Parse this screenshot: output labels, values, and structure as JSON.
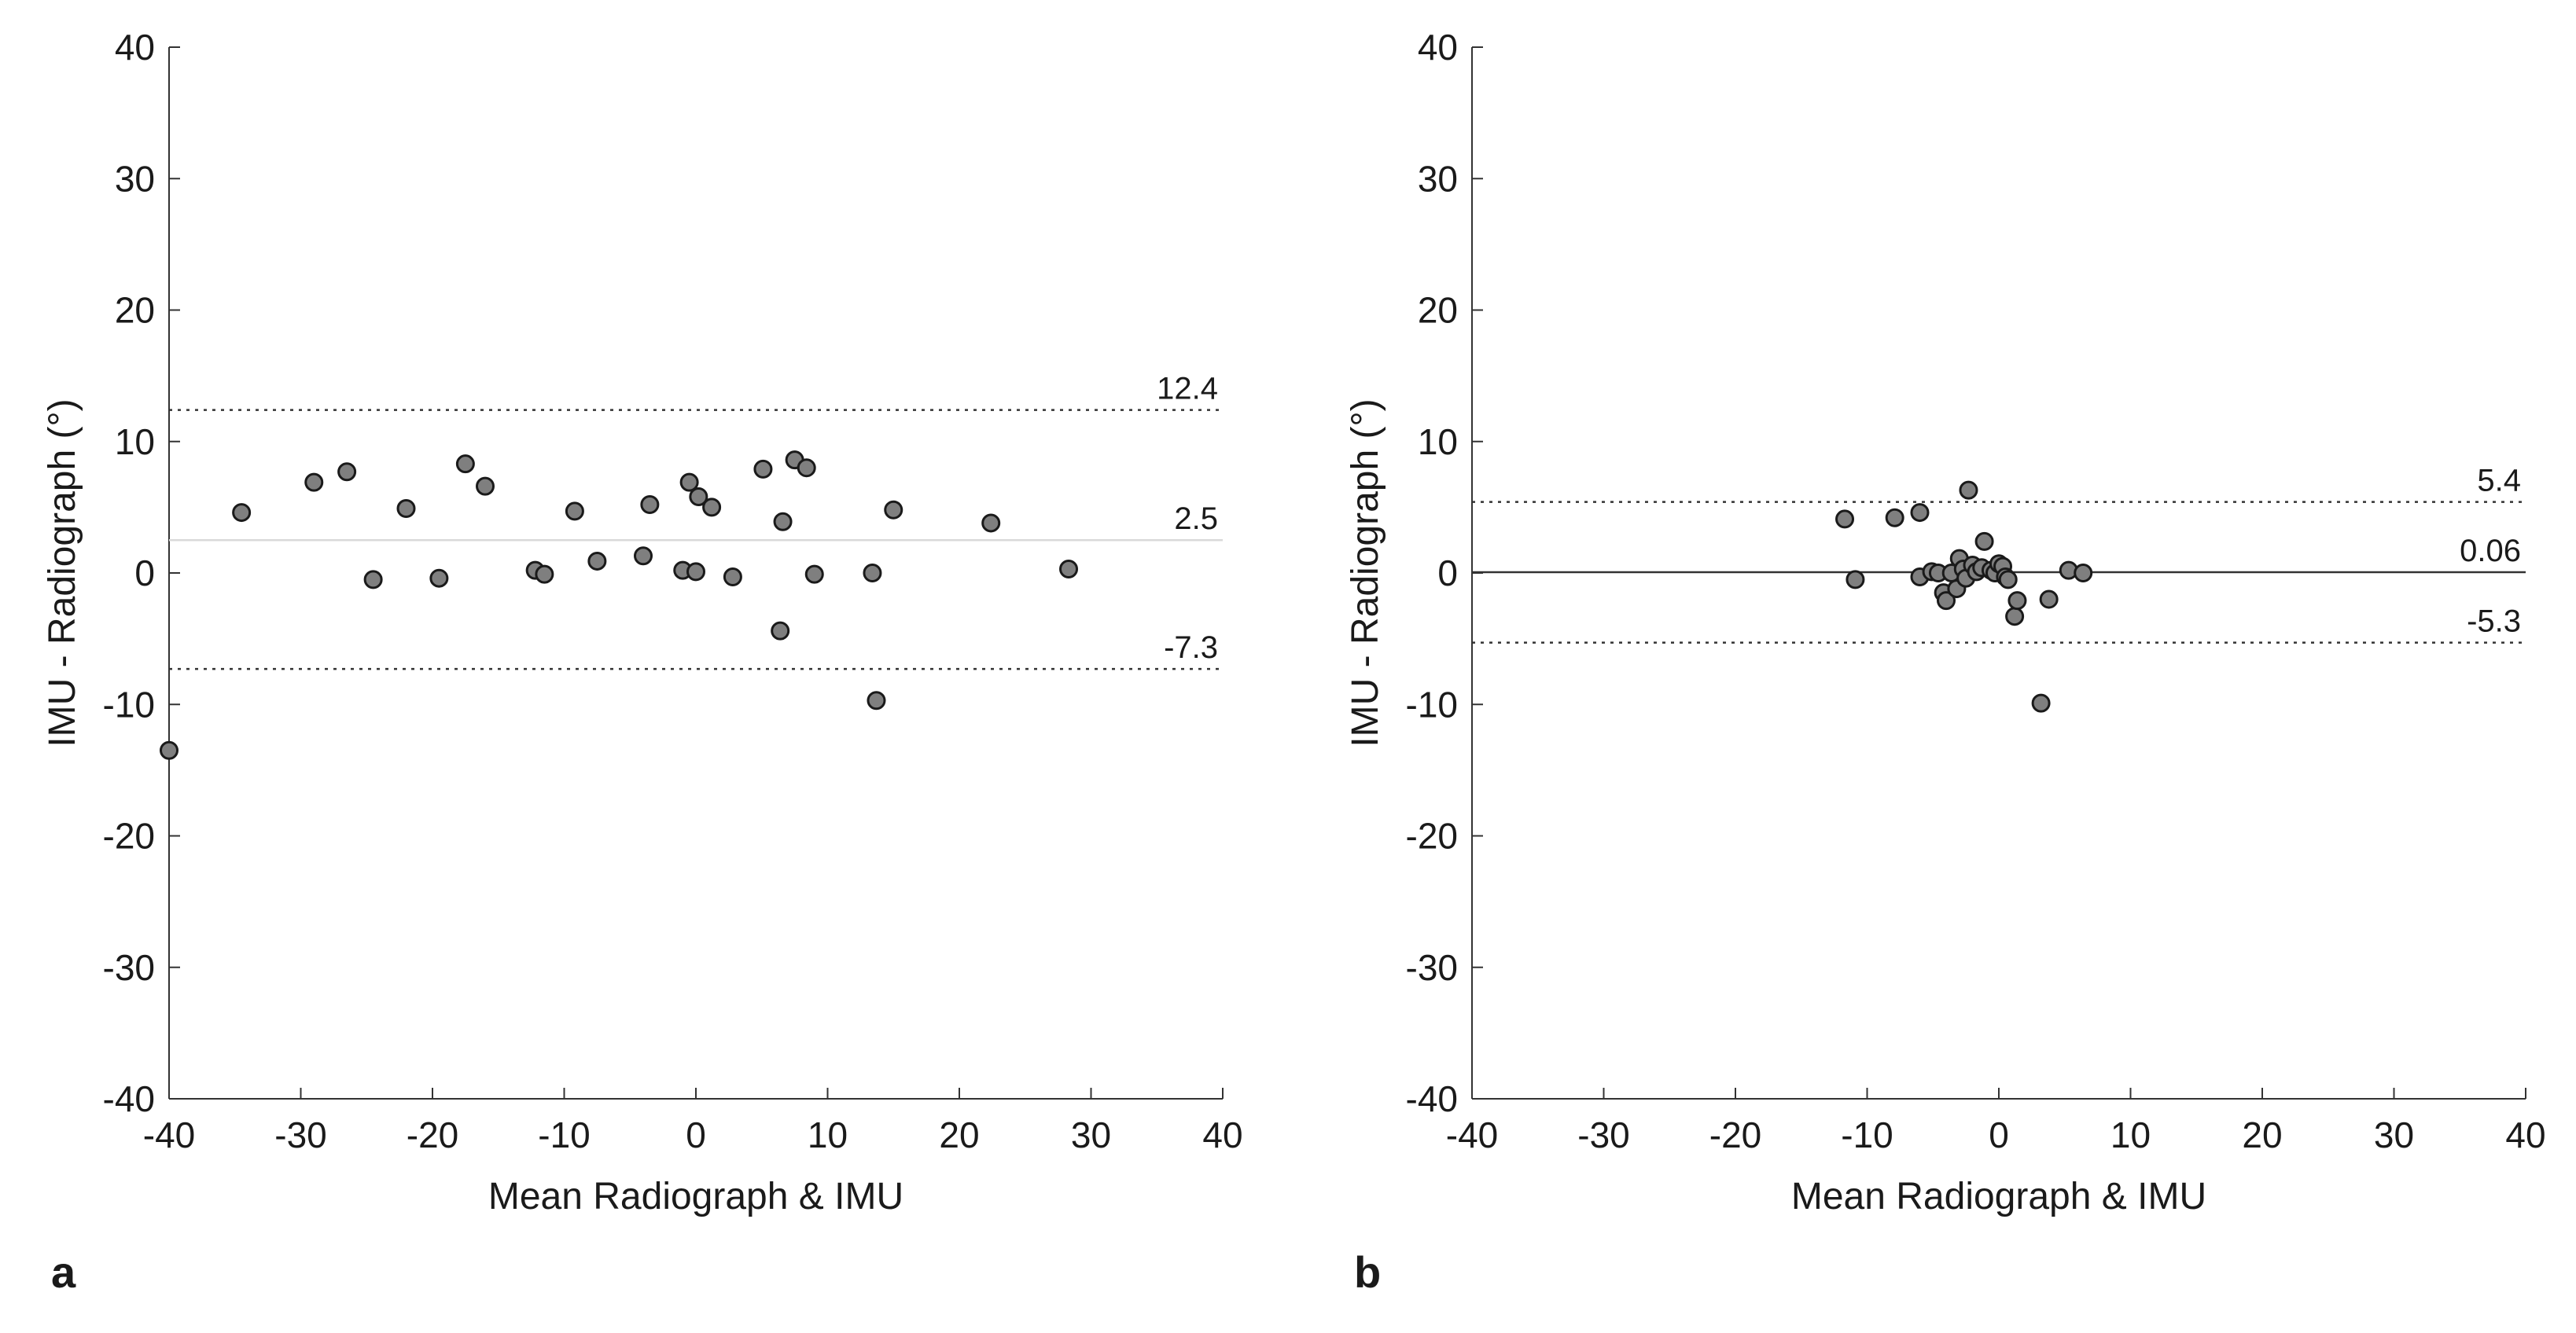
{
  "chart_data": [
    {
      "type": "scatter",
      "panel_label": "a",
      "title": "",
      "xlabel": "Mean Radiograph & IMU",
      "ylabel": "IMU - Radiograph (°)",
      "xlim": [
        -40,
        40
      ],
      "ylim": [
        -40,
        40
      ],
      "xticks": [
        -40,
        -30,
        -20,
        -10,
        0,
        10,
        20,
        30,
        40
      ],
      "yticks": [
        -40,
        -30,
        -20,
        -10,
        0,
        10,
        20,
        30,
        40
      ],
      "grid": false,
      "point_color": "#7f7f7f",
      "reference_lines": [
        {
          "name": "upper-limit",
          "value": 12.4,
          "label": "12.4",
          "style": "dotted",
          "color": "#333333"
        },
        {
          "name": "mean-bias",
          "value": 2.5,
          "label": "2.5",
          "style": "solid",
          "color": "#d9d9d9"
        },
        {
          "name": "lower-limit",
          "value": -7.3,
          "label": "-7.3",
          "style": "dotted",
          "color": "#333333"
        }
      ],
      "points": [
        {
          "x": -40,
          "y": -13.5
        },
        {
          "x": -34.5,
          "y": 4.6
        },
        {
          "x": -29,
          "y": 6.9
        },
        {
          "x": -26.5,
          "y": 7.7
        },
        {
          "x": -24.5,
          "y": -0.5
        },
        {
          "x": -22,
          "y": 4.9
        },
        {
          "x": -19.5,
          "y": -0.4
        },
        {
          "x": -17.5,
          "y": 8.3
        },
        {
          "x": -16,
          "y": 6.6
        },
        {
          "x": -12.2,
          "y": 0.2
        },
        {
          "x": -11.5,
          "y": -0.1
        },
        {
          "x": -9.2,
          "y": 4.7
        },
        {
          "x": -7.5,
          "y": 0.9
        },
        {
          "x": -4,
          "y": 1.3
        },
        {
          "x": -3.5,
          "y": 5.2
        },
        {
          "x": -1,
          "y": 0.2
        },
        {
          "x": -0.5,
          "y": 6.9
        },
        {
          "x": 0,
          "y": 0.1
        },
        {
          "x": 0.2,
          "y": 5.8
        },
        {
          "x": 1.2,
          "y": 5
        },
        {
          "x": 2.8,
          "y": -0.3
        },
        {
          "x": 5.1,
          "y": 7.9
        },
        {
          "x": 6.4,
          "y": -4.4
        },
        {
          "x": 6.6,
          "y": 3.9
        },
        {
          "x": 7.5,
          "y": 8.6
        },
        {
          "x": 8.4,
          "y": 8
        },
        {
          "x": 9,
          "y": -0.1
        },
        {
          "x": 13.4,
          "y": 0
        },
        {
          "x": 13.7,
          "y": -9.7
        },
        {
          "x": 15,
          "y": 4.8
        },
        {
          "x": 22.4,
          "y": 3.8
        },
        {
          "x": 28.3,
          "y": 0.3
        }
      ]
    },
    {
      "type": "scatter",
      "panel_label": "b",
      "title": "",
      "xlabel": "Mean Radiograph & IMU",
      "ylabel": "IMU - Radiograph (°)",
      "xlim": [
        -40,
        40
      ],
      "ylim": [
        -40,
        40
      ],
      "xticks": [
        -40,
        -30,
        -20,
        -10,
        0,
        10,
        20,
        30,
        40
      ],
      "yticks": [
        -40,
        -30,
        -20,
        -10,
        0,
        10,
        20,
        30,
        40
      ],
      "grid": false,
      "point_color": "#7f7f7f",
      "reference_lines": [
        {
          "name": "upper-limit",
          "value": 5.4,
          "label": "5.4",
          "style": "dotted",
          "color": "#333333"
        },
        {
          "name": "mean-bias",
          "value": 0.06,
          "label": "0.06",
          "style": "solid",
          "color": "#333333"
        },
        {
          "name": "lower-limit",
          "value": -5.3,
          "label": "-5.3",
          "style": "dotted",
          "color": "#333333"
        }
      ],
      "points": [
        {
          "x": -11.7,
          "y": 4.1
        },
        {
          "x": -10.9,
          "y": -0.5
        },
        {
          "x": -7.9,
          "y": 4.2
        },
        {
          "x": -6,
          "y": 4.6
        },
        {
          "x": -6,
          "y": -0.3
        },
        {
          "x": -5.1,
          "y": 0.1
        },
        {
          "x": -4.6,
          "y": 0
        },
        {
          "x": -4.2,
          "y": -1.5
        },
        {
          "x": -4,
          "y": -2.1
        },
        {
          "x": -3.6,
          "y": 0
        },
        {
          "x": -3.2,
          "y": -1.2
        },
        {
          "x": -3,
          "y": 1.1
        },
        {
          "x": -2.7,
          "y": 0.3
        },
        {
          "x": -2.5,
          "y": -0.4
        },
        {
          "x": -2.3,
          "y": 6.3
        },
        {
          "x": -2,
          "y": 0.6
        },
        {
          "x": -1.7,
          "y": 0.1
        },
        {
          "x": -1.3,
          "y": 0.4
        },
        {
          "x": -1.1,
          "y": 2.4
        },
        {
          "x": -0.6,
          "y": 0.2
        },
        {
          "x": -0.3,
          "y": 0
        },
        {
          "x": 0,
          "y": 0.7
        },
        {
          "x": 0.3,
          "y": 0.5
        },
        {
          "x": 0.5,
          "y": -0.3
        },
        {
          "x": 0.7,
          "y": -0.5
        },
        {
          "x": 1.2,
          "y": -3.3
        },
        {
          "x": 1.4,
          "y": -2.1
        },
        {
          "x": 3.2,
          "y": -9.9
        },
        {
          "x": 3.8,
          "y": -2
        },
        {
          "x": 5.3,
          "y": 0.2
        },
        {
          "x": 6.4,
          "y": 0
        }
      ]
    }
  ]
}
